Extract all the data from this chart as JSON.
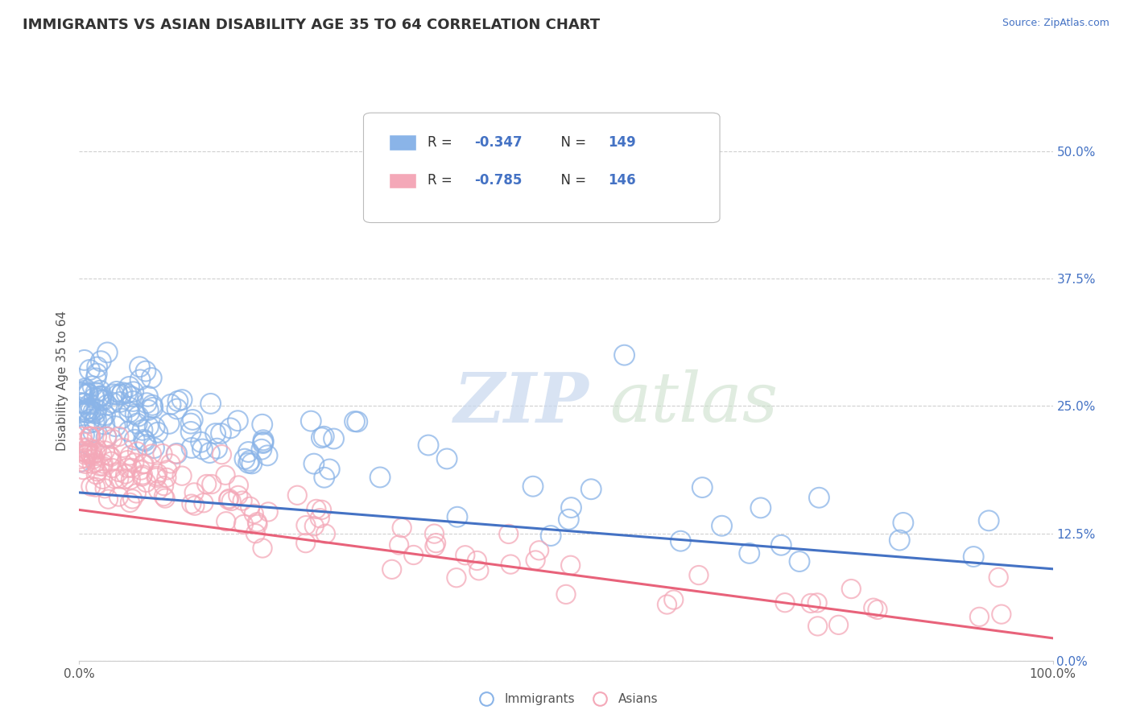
{
  "title": "IMMIGRANTS VS ASIAN DISABILITY AGE 35 TO 64 CORRELATION CHART",
  "source": "Source: ZipAtlas.com",
  "ylabel": "Disability Age 35 to 64",
  "xlim": [
    0.0,
    1.0
  ],
  "ylim": [
    0.0,
    0.55
  ],
  "yticks": [
    0.0,
    0.125,
    0.25,
    0.375,
    0.5
  ],
  "yticklabels_right": [
    "0.0%",
    "12.5%",
    "25.0%",
    "37.5%",
    "50.0%"
  ],
  "xticks": [
    0.0,
    1.0
  ],
  "xticklabels": [
    "0.0%",
    "100.0%"
  ],
  "immigrants_color": "#8ab4e8",
  "asians_color": "#f4a8b8",
  "trend_immigrants_color": "#4472c4",
  "trend_asians_color": "#e8627a",
  "background_color": "#ffffff",
  "grid_color": "#d0d0d0",
  "watermark_zip": "ZIP",
  "watermark_atlas": "atlas",
  "title_fontsize": 13,
  "axis_label_fontsize": 11,
  "tick_fontsize": 11,
  "legend_label_immigrants": "Immigrants",
  "legend_label_asians": "Asians",
  "immigrants_R": -0.347,
  "immigrants_N": 149,
  "asians_R": -0.785,
  "asians_N": 146,
  "trend_imm_x0": 0.0,
  "trend_imm_y0": 0.165,
  "trend_imm_x1": 1.0,
  "trend_imm_y1": 0.09,
  "trend_asi_x0": 0.0,
  "trend_asi_y0": 0.148,
  "trend_asi_x1": 1.0,
  "trend_asi_y1": 0.022
}
